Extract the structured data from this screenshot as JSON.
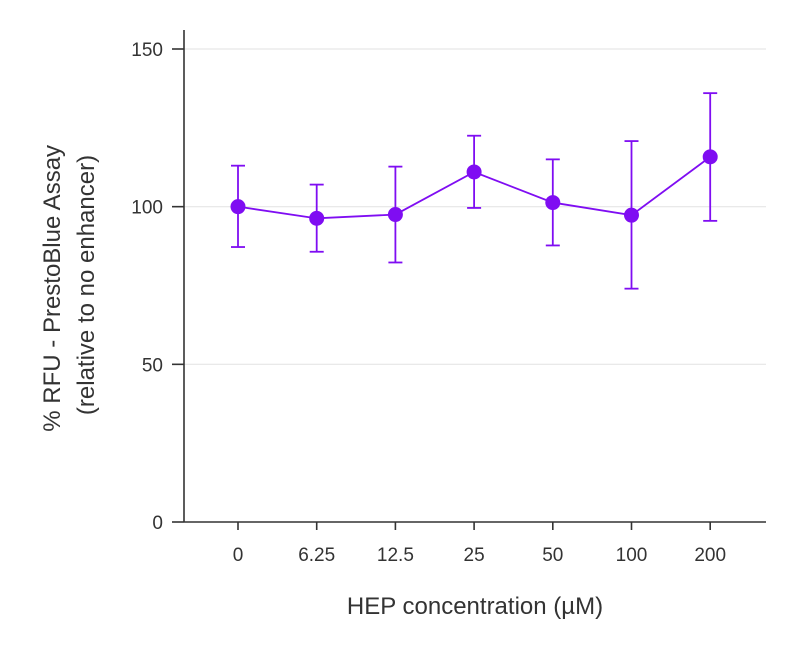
{
  "chart_data": {
    "type": "line",
    "title": "",
    "xlabel": "HEP concentration (µM)",
    "ylabel": [
      "% RFU - PrestoBlue Assay",
      "(relative to no enhancer)"
    ],
    "categories": [
      "0",
      "6.25",
      "12.5",
      "25",
      "50",
      "100",
      "200"
    ],
    "series": [
      {
        "values": [
          100,
          96.3,
          97.5,
          111,
          101.3,
          97.3,
          115.8
        ],
        "error_upper": [
          113,
          107,
          112.7,
          122.5,
          115,
          120.8,
          136
        ],
        "error_lower": [
          87.2,
          85.7,
          82.3,
          99.6,
          87.7,
          74,
          95.5
        ]
      }
    ],
    "ylim": [
      0,
      150
    ],
    "yticks": [
      "0",
      "50",
      "100",
      "150"
    ],
    "grid": true,
    "legend": "none",
    "colors": {
      "series": "#7f0df2",
      "axis": "#333333",
      "grid": "#e6e6e6"
    }
  }
}
